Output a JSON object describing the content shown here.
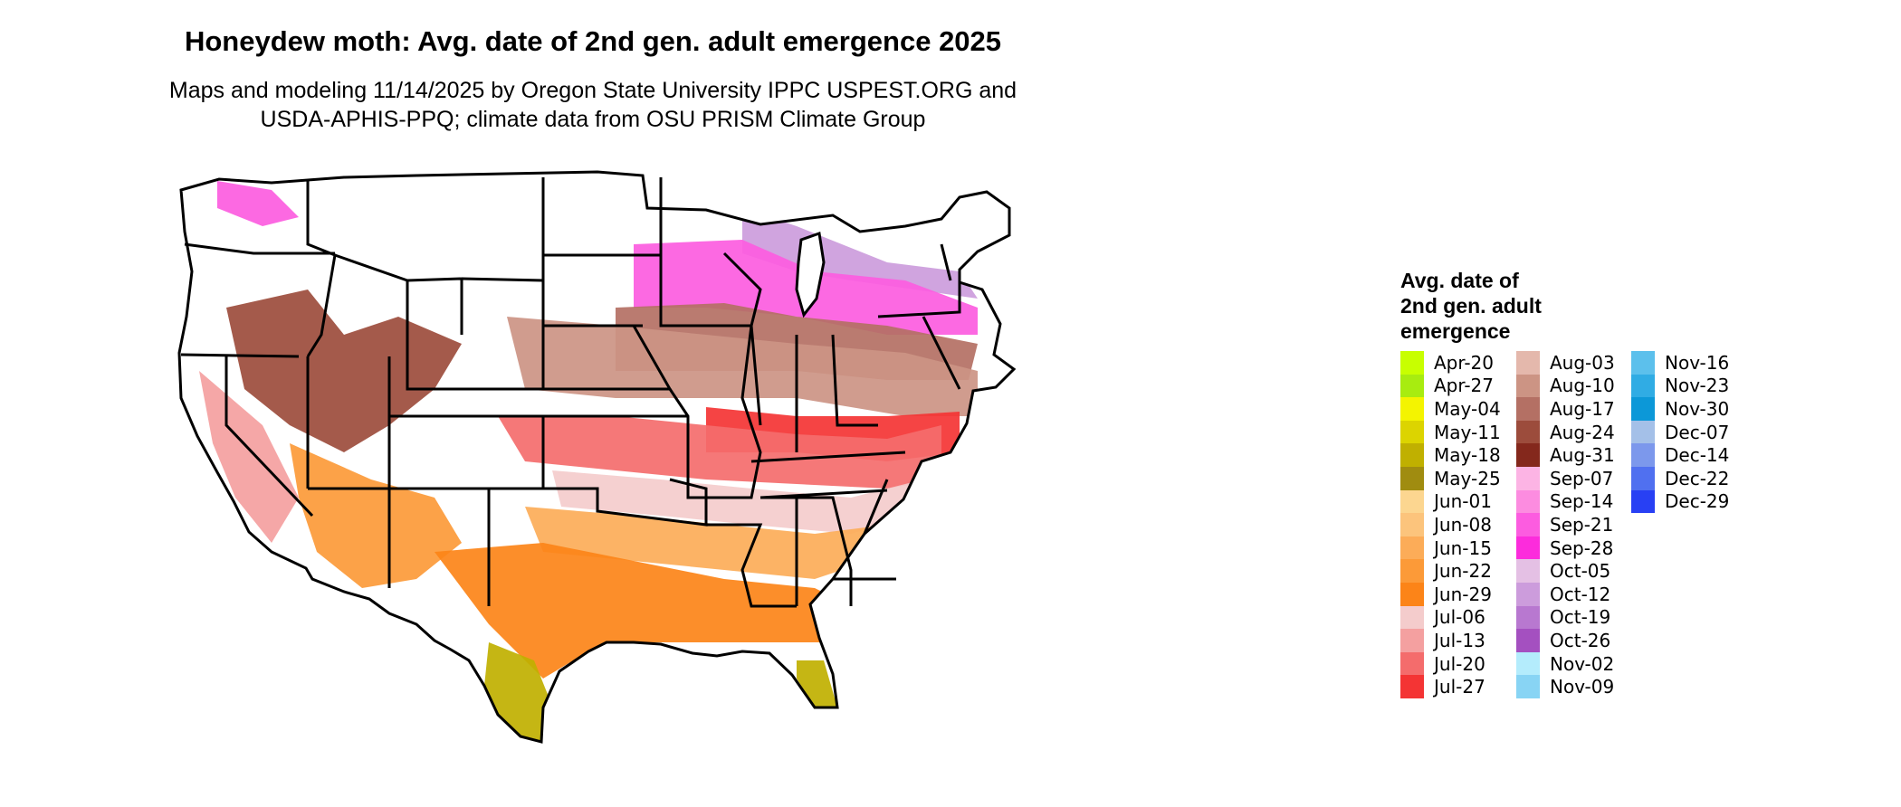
{
  "title": "Honeydew moth: Avg. date of 2nd gen. adult emergence 2025",
  "subtitle_line1": "Maps and modeling 11/14/2025 by Oregon State University IPPC USPEST.ORG and",
  "subtitle_line2": "USDA-APHIS-PPQ; climate data from OSU PRISM Climate Group",
  "legend": {
    "title_lines": [
      "Avg. date of",
      "2nd gen. adult",
      "emergence"
    ],
    "items": [
      {
        "label": "Apr-20",
        "color": "#c8ff00"
      },
      {
        "label": "Apr-27",
        "color": "#a8ec10"
      },
      {
        "label": "May-04",
        "color": "#f4f400"
      },
      {
        "label": "May-11",
        "color": "#dcd400"
      },
      {
        "label": "May-18",
        "color": "#c0b000"
      },
      {
        "label": "May-25",
        "color": "#a08c10"
      },
      {
        "label": "Jun-01",
        "color": "#fcd690"
      },
      {
        "label": "Jun-08",
        "color": "#fcc47c"
      },
      {
        "label": "Jun-15",
        "color": "#fcac58"
      },
      {
        "label": "Jun-22",
        "color": "#fc9a38"
      },
      {
        "label": "Jun-29",
        "color": "#fc8418"
      },
      {
        "label": "Jul-06",
        "color": "#f4cccc"
      },
      {
        "label": "Jul-13",
        "color": "#f4a0a0"
      },
      {
        "label": "Jul-20",
        "color": "#f46c6c"
      },
      {
        "label": "Jul-27",
        "color": "#f43434"
      },
      {
        "label": "Aug-03",
        "color": "#e4b8ac"
      },
      {
        "label": "Aug-10",
        "color": "#cc9484"
      },
      {
        "label": "Aug-17",
        "color": "#b47064"
      },
      {
        "label": "Aug-24",
        "color": "#9c4c3c"
      },
      {
        "label": "Aug-31",
        "color": "#84281c"
      },
      {
        "label": "Sep-07",
        "color": "#fcb4e4"
      },
      {
        "label": "Sep-14",
        "color": "#fc8ce0"
      },
      {
        "label": "Sep-21",
        "color": "#fc5ce0"
      },
      {
        "label": "Sep-28",
        "color": "#fc2cdc"
      },
      {
        "label": "Oct-05",
        "color": "#e4c0e4"
      },
      {
        "label": "Oct-12",
        "color": "#cc9cdc"
      },
      {
        "label": "Oct-19",
        "color": "#b878d0"
      },
      {
        "label": "Oct-26",
        "color": "#a450c0"
      },
      {
        "label": "Nov-02",
        "color": "#b4ecfc"
      },
      {
        "label": "Nov-09",
        "color": "#88d4f4"
      },
      {
        "label": "Nov-16",
        "color": "#5cc0ec"
      },
      {
        "label": "Nov-23",
        "color": "#30ace4"
      },
      {
        "label": "Nov-30",
        "color": "#0c98d8"
      },
      {
        "label": "Dec-07",
        "color": "#a4c0e8"
      },
      {
        "label": "Dec-14",
        "color": "#7c98ec"
      },
      {
        "label": "Dec-22",
        "color": "#5070f0"
      },
      {
        "label": "Dec-29",
        "color": "#2840f4"
      }
    ]
  },
  "map_regions": [
    {
      "name": "florida-south",
      "legend_label": "May-18"
    },
    {
      "name": "texas-south-tip",
      "legend_label": "May-18"
    },
    {
      "name": "gulf-coast",
      "legend_label": "Jun-29"
    },
    {
      "name": "arizona-desert",
      "legend_label": "Jun-22"
    },
    {
      "name": "deep-south",
      "legend_label": "Jun-15"
    },
    {
      "name": "southeast-band",
      "legend_label": "Jul-06"
    },
    {
      "name": "southern-plains",
      "legend_label": "Jul-20"
    },
    {
      "name": "tennessee-band",
      "legend_label": "Jul-27"
    },
    {
      "name": "central-valley",
      "legend_label": "Jul-13"
    },
    {
      "name": "midwest-band",
      "legend_label": "Aug-10"
    },
    {
      "name": "corn-belt",
      "legend_label": "Aug-17"
    },
    {
      "name": "great-basin",
      "legend_label": "Aug-24"
    },
    {
      "name": "northern-fringe",
      "legend_label": "Sep-21"
    },
    {
      "name": "great-lakes-fringe",
      "legend_label": "Oct-12"
    }
  ]
}
